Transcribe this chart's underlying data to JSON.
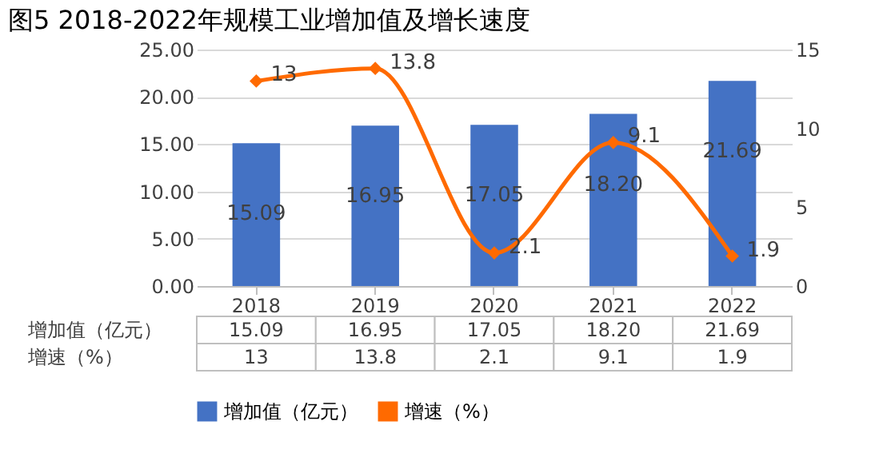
{
  "chart_data": {
    "type": "bar",
    "title": "图5  2018-2022年规模工业增加值及增长速度",
    "categories": [
      "2018",
      "2019",
      "2020",
      "2021",
      "2022"
    ],
    "series": [
      {
        "name": "增加值（亿元）",
        "color": "#4472c4",
        "values": [
          15.09,
          16.95,
          17.05,
          18.2,
          21.69
        ],
        "value_labels": [
          "15.09",
          "16.95",
          "17.05",
          "18.20",
          "21.69"
        ]
      },
      {
        "name": "增速（%）",
        "type": "line",
        "axis": "y2",
        "color": "#ff6a00",
        "values": [
          13,
          13.8,
          2.1,
          9.1,
          1.9
        ],
        "value_labels": [
          "13",
          "13.8",
          "2.1",
          "9.1",
          "1.9"
        ],
        "marker": "diamond"
      }
    ],
    "ylim": [
      0,
      25
    ],
    "yticks": [
      {
        "value": 0,
        "label": "0.00"
      },
      {
        "value": 5,
        "label": "5.00"
      },
      {
        "value": 10,
        "label": "10.00"
      },
      {
        "value": 15,
        "label": "15.00"
      },
      {
        "value": 20,
        "label": "20.00"
      },
      {
        "value": 25,
        "label": "25.00"
      }
    ],
    "y2lim": [
      0,
      15
    ],
    "y2ticks": [
      0,
      5,
      10,
      15
    ],
    "grid": "y",
    "legend": "bottom",
    "data_labels": true
  }
}
